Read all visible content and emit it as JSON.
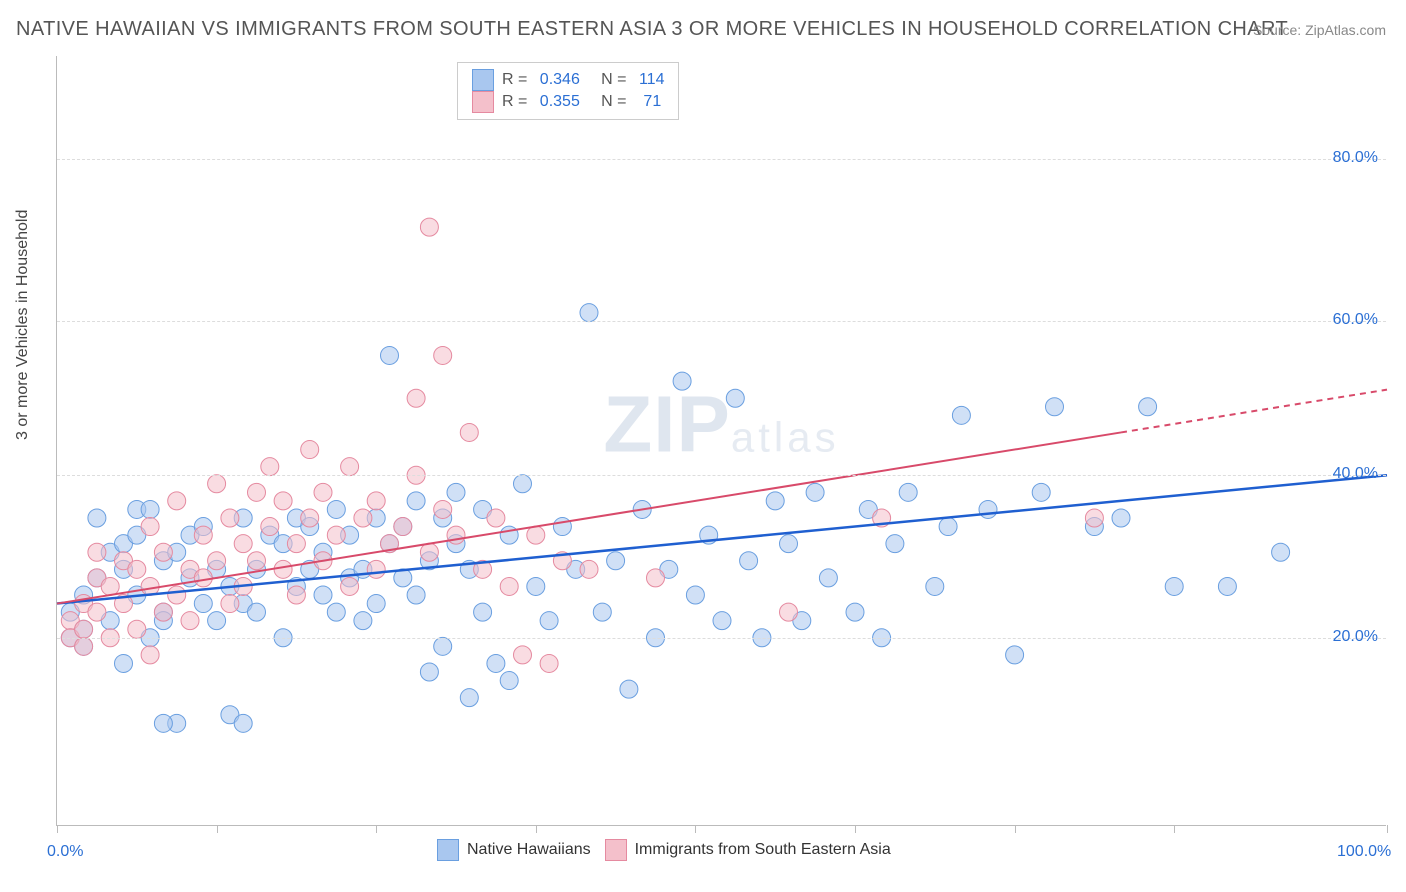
{
  "title": "NATIVE HAWAIIAN VS IMMIGRANTS FROM SOUTH EASTERN ASIA 3 OR MORE VEHICLES IN HOUSEHOLD CORRELATION CHART",
  "source": "Source: ZipAtlas.com",
  "y_axis_title": "3 or more Vehicles in Household",
  "watermark_main": "ZIP",
  "watermark_sub": "atlas",
  "chart": {
    "type": "scatter",
    "xlim": [
      0,
      100
    ],
    "ylim": [
      0,
      90
    ],
    "y_gridlines": [
      22,
      41,
      59,
      78
    ],
    "y_tick_labels": {
      "22": "20.0%",
      "41": "40.0%",
      "59": "60.0%",
      "78": "80.0%"
    },
    "x_ticks": [
      0,
      12,
      24,
      36,
      48,
      60,
      72,
      84,
      100
    ],
    "x_tick_labels": {
      "0": "0.0%",
      "100": "100.0%"
    },
    "background_color": "#ffffff",
    "grid_color": "#dddddd",
    "axis_color": "#bbbbbb",
    "point_radius": 9,
    "point_opacity": 0.55,
    "series": [
      {
        "name": "Native Hawaiians",
        "color_fill": "#a9c7ef",
        "color_stroke": "#6a9fe0",
        "R": "0.346",
        "N": "114",
        "trend": {
          "y_at_0": 26,
          "y_at_100": 41,
          "color": "#1f5fd0",
          "width": 2.5,
          "dash_from_x": null
        },
        "points": [
          [
            1,
            22
          ],
          [
            1,
            25
          ],
          [
            2,
            21
          ],
          [
            2,
            27
          ],
          [
            2,
            23
          ],
          [
            3,
            36
          ],
          [
            3,
            29
          ],
          [
            4,
            32
          ],
          [
            4,
            24
          ],
          [
            5,
            33
          ],
          [
            5,
            30
          ],
          [
            5,
            19
          ],
          [
            6,
            37
          ],
          [
            6,
            34
          ],
          [
            6,
            27
          ],
          [
            7,
            37
          ],
          [
            7,
            22
          ],
          [
            8,
            31
          ],
          [
            8,
            25
          ],
          [
            8,
            24
          ],
          [
            9,
            12
          ],
          [
            9,
            32
          ],
          [
            10,
            34
          ],
          [
            10,
            29
          ],
          [
            11,
            26
          ],
          [
            11,
            35
          ],
          [
            12,
            24
          ],
          [
            12,
            30
          ],
          [
            13,
            28
          ],
          [
            13,
            13
          ],
          [
            14,
            36
          ],
          [
            14,
            26
          ],
          [
            15,
            30
          ],
          [
            15,
            25
          ],
          [
            16,
            34
          ],
          [
            17,
            22
          ],
          [
            17,
            33
          ],
          [
            18,
            36
          ],
          [
            18,
            28
          ],
          [
            19,
            30
          ],
          [
            19,
            35
          ],
          [
            20,
            27
          ],
          [
            20,
            32
          ],
          [
            21,
            25
          ],
          [
            21,
            37
          ],
          [
            22,
            29
          ],
          [
            22,
            34
          ],
          [
            23,
            24
          ],
          [
            23,
            30
          ],
          [
            24,
            36
          ],
          [
            24,
            26
          ],
          [
            25,
            33
          ],
          [
            25,
            55
          ],
          [
            26,
            29
          ],
          [
            26,
            35
          ],
          [
            27,
            27
          ],
          [
            27,
            38
          ],
          [
            28,
            31
          ],
          [
            28,
            18
          ],
          [
            29,
            36
          ],
          [
            29,
            21
          ],
          [
            30,
            33
          ],
          [
            30,
            39
          ],
          [
            31,
            15
          ],
          [
            31,
            30
          ],
          [
            32,
            25
          ],
          [
            32,
            37
          ],
          [
            33,
            19
          ],
          [
            34,
            17
          ],
          [
            34,
            34
          ],
          [
            35,
            40
          ],
          [
            36,
            28
          ],
          [
            37,
            24
          ],
          [
            38,
            35
          ],
          [
            39,
            30
          ],
          [
            40,
            60
          ],
          [
            41,
            25
          ],
          [
            42,
            31
          ],
          [
            43,
            16
          ],
          [
            44,
            37
          ],
          [
            45,
            22
          ],
          [
            46,
            30
          ],
          [
            47,
            52
          ],
          [
            48,
            27
          ],
          [
            49,
            34
          ],
          [
            50,
            24
          ],
          [
            51,
            50
          ],
          [
            52,
            31
          ],
          [
            53,
            22
          ],
          [
            54,
            38
          ],
          [
            55,
            33
          ],
          [
            56,
            24
          ],
          [
            57,
            39
          ],
          [
            58,
            29
          ],
          [
            60,
            25
          ],
          [
            61,
            37
          ],
          [
            62,
            22
          ],
          [
            63,
            33
          ],
          [
            64,
            39
          ],
          [
            66,
            28
          ],
          [
            67,
            35
          ],
          [
            68,
            48
          ],
          [
            70,
            37
          ],
          [
            72,
            20
          ],
          [
            74,
            39
          ],
          [
            75,
            49
          ],
          [
            78,
            35
          ],
          [
            80,
            36
          ],
          [
            82,
            49
          ],
          [
            84,
            28
          ],
          [
            88,
            28
          ],
          [
            92,
            32
          ],
          [
            14,
            12
          ],
          [
            8,
            12
          ]
        ]
      },
      {
        "name": "Immigrants from South Eastern Asia",
        "color_fill": "#f4c0cb",
        "color_stroke": "#e58aa0",
        "R": "0.355",
        "N": "71",
        "trend": {
          "y_at_0": 26,
          "y_at_100": 51,
          "color": "#d84a6a",
          "width": 2,
          "dash_from_x": 80
        },
        "points": [
          [
            1,
            24
          ],
          [
            1,
            22
          ],
          [
            2,
            26
          ],
          [
            2,
            21
          ],
          [
            2,
            23
          ],
          [
            3,
            29
          ],
          [
            3,
            25
          ],
          [
            3,
            32
          ],
          [
            4,
            28
          ],
          [
            4,
            22
          ],
          [
            5,
            26
          ],
          [
            5,
            31
          ],
          [
            6,
            23
          ],
          [
            6,
            30
          ],
          [
            7,
            35
          ],
          [
            7,
            28
          ],
          [
            7,
            20
          ],
          [
            8,
            32
          ],
          [
            8,
            25
          ],
          [
            9,
            27
          ],
          [
            9,
            38
          ],
          [
            10,
            30
          ],
          [
            10,
            24
          ],
          [
            11,
            34
          ],
          [
            11,
            29
          ],
          [
            12,
            40
          ],
          [
            12,
            31
          ],
          [
            13,
            26
          ],
          [
            13,
            36
          ],
          [
            14,
            33
          ],
          [
            14,
            28
          ],
          [
            15,
            39
          ],
          [
            15,
            31
          ],
          [
            16,
            42
          ],
          [
            16,
            35
          ],
          [
            17,
            30
          ],
          [
            17,
            38
          ],
          [
            18,
            33
          ],
          [
            18,
            27
          ],
          [
            19,
            36
          ],
          [
            19,
            44
          ],
          [
            20,
            31
          ],
          [
            20,
            39
          ],
          [
            21,
            34
          ],
          [
            22,
            28
          ],
          [
            22,
            42
          ],
          [
            23,
            36
          ],
          [
            24,
            30
          ],
          [
            24,
            38
          ],
          [
            25,
            33
          ],
          [
            26,
            35
          ],
          [
            27,
            41
          ],
          [
            27,
            50
          ],
          [
            28,
            32
          ],
          [
            28,
            70
          ],
          [
            29,
            37
          ],
          [
            29,
            55
          ],
          [
            30,
            34
          ],
          [
            31,
            46
          ],
          [
            32,
            30
          ],
          [
            33,
            36
          ],
          [
            34,
            28
          ],
          [
            35,
            20
          ],
          [
            36,
            34
          ],
          [
            37,
            19
          ],
          [
            38,
            31
          ],
          [
            40,
            30
          ],
          [
            45,
            29
          ],
          [
            55,
            25
          ],
          [
            62,
            36
          ],
          [
            78,
            36
          ]
        ]
      }
    ]
  },
  "legend_top": {
    "rows": [
      {
        "swatch_fill": "#a9c7ef",
        "swatch_stroke": "#6a9fe0",
        "r_label": "R =",
        "r_val": "0.346",
        "n_label": "N =",
        "n_val": "114"
      },
      {
        "swatch_fill": "#f4c0cb",
        "swatch_stroke": "#e58aa0",
        "r_label": "R =",
        "r_val": "0.355",
        "n_label": "N =",
        "n_val": " 71"
      }
    ]
  },
  "legend_bottom": [
    {
      "swatch_fill": "#a9c7ef",
      "swatch_stroke": "#6a9fe0",
      "label": "Native Hawaiians"
    },
    {
      "swatch_fill": "#f4c0cb",
      "swatch_stroke": "#e58aa0",
      "label": "Immigrants from South Eastern Asia"
    }
  ]
}
